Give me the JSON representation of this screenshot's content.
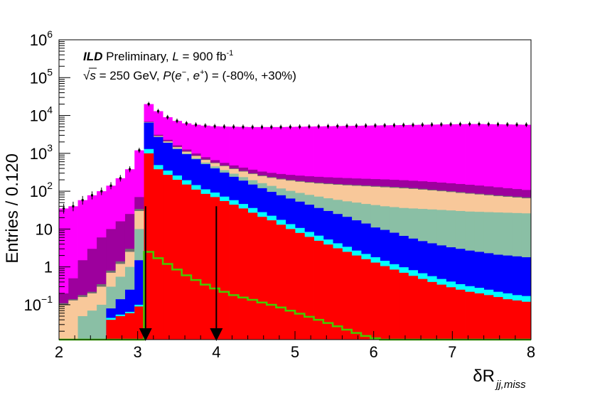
{
  "chart_data": {
    "type": "histogram",
    "ylabel": "Entries / 0.120",
    "xlabel": "δR",
    "xlabel_sub": "jj,miss",
    "xlim": [
      2,
      8
    ],
    "ylim": [
      0.012,
      1000000
    ],
    "y_scale": "log",
    "x_ticks": [
      "2",
      "3",
      "4",
      "5",
      "6",
      "7",
      "8"
    ],
    "y_ticks": [
      {
        "label": "10",
        "sup": "6",
        "value": 1000000
      },
      {
        "label": "10",
        "sup": "5",
        "value": 100000
      },
      {
        "label": "10",
        "sup": "4",
        "value": 10000
      },
      {
        "label": "10",
        "sup": "3",
        "value": 1000
      },
      {
        "label": "10",
        "sup": "2",
        "value": 100
      },
      {
        "label": "10",
        "sup": "",
        "value": 10
      },
      {
        "label": "1",
        "sup": "",
        "value": 1
      },
      {
        "label": "10",
        "sup": "−1",
        "value": 0.1
      }
    ],
    "annotation": {
      "ild": "ILD",
      "preliminary": " Preliminary, ",
      "lumi_symbol": "L",
      "lumi_value": " = 900 fb",
      "lumi_exp": "-1",
      "sqrt": "√",
      "s_symbol": "s",
      "energy": " = 250 GeV, ",
      "p_symbol": "P",
      "pol_open": "(",
      "e_minus": "e",
      "e_minus_sup": "−",
      "comma": ", ",
      "e_plus": "e",
      "e_plus_sup": "+",
      "pol_close": ") = (-80%, +30%)"
    },
    "bin_width": 0.12,
    "stack_colors": [
      "#ff0000",
      "#00ffff",
      "#0000ff",
      "#8abfa5",
      "#f8c89a",
      "#707070",
      "#9d009d",
      "#ff00ff"
    ],
    "stacks": [
      [
        0.012,
        0.012,
        0.012,
        0.012,
        0.012,
        0.04,
        0.05,
        0.06,
        0.09,
        1000,
        380,
        270,
        200,
        150,
        110,
        85,
        70,
        55,
        44,
        35,
        27,
        21,
        17,
        13,
        10,
        7.9,
        6.2,
        4.9,
        3.9,
        3.1,
        2.5,
        2.0,
        1.6,
        1.3,
        1.05,
        0.85,
        0.7,
        0.58,
        0.48,
        0.4,
        0.34,
        0.29,
        0.25,
        0.22,
        0.2,
        0.18,
        0.16,
        0.14,
        0.13,
        0.12
      ],
      [
        0.012,
        0.012,
        0.012,
        0.012,
        0.012,
        0.045,
        0.055,
        0.065,
        0.1,
        1300,
        490,
        350,
        260,
        195,
        145,
        112,
        92,
        72,
        58,
        46,
        36,
        28,
        22.5,
        17.5,
        13.5,
        10.7,
        8.4,
        6.7,
        5.3,
        4.2,
        3.4,
        2.7,
        2.2,
        1.8,
        1.45,
        1.18,
        0.98,
        0.82,
        0.68,
        0.57,
        0.48,
        0.41,
        0.35,
        0.31,
        0.28,
        0.25,
        0.22,
        0.2,
        0.18,
        0.17
      ],
      [
        0.012,
        0.012,
        0.012,
        0.012,
        0.012,
        0.08,
        0.14,
        0.25,
        1.5,
        6500,
        2700,
        1900,
        1300,
        950,
        700,
        520,
        400,
        310,
        240,
        190,
        150,
        120,
        96,
        78,
        64,
        53,
        44,
        36,
        30,
        25,
        21,
        17,
        14,
        11,
        9.5,
        8,
        6.6,
        5.6,
        4.8,
        4.2,
        3.7,
        3.3,
        3.0,
        2.7,
        2.5,
        2.3,
        2.1,
        2.0,
        1.9,
        1.8
      ],
      [
        0.012,
        0.012,
        0.05,
        0.07,
        0.1,
        0.3,
        0.55,
        1.0,
        10,
        6550,
        2750,
        1950,
        1350,
        1000,
        750,
        570,
        450,
        360,
        290,
        235,
        195,
        163,
        138,
        118,
        102,
        90,
        80,
        72,
        65,
        59,
        54,
        50,
        46,
        43,
        40,
        38,
        36,
        35,
        34,
        33,
        32,
        31,
        30,
        29,
        28.5,
        28,
        27.5,
        27,
        26.5,
        26
      ],
      [
        0.1,
        0.13,
        0.16,
        0.2,
        0.3,
        0.7,
        1.2,
        2.5,
        30,
        6650,
        2850,
        2060,
        1450,
        1100,
        850,
        670,
        550,
        460,
        385,
        330,
        285,
        250,
        225,
        205,
        190,
        178,
        168,
        160,
        154,
        148,
        143,
        139,
        135,
        131,
        127,
        123,
        119,
        115,
        110,
        105,
        100,
        95,
        90,
        86,
        82,
        78,
        74,
        71,
        68,
        65
      ],
      [
        0.11,
        0.14,
        0.18,
        0.22,
        0.35,
        0.8,
        1.4,
        3.0,
        34,
        6700,
        2900,
        2100,
        1480,
        1130,
        875,
        690,
        570,
        478,
        400,
        345,
        298,
        262,
        236,
        215,
        199,
        186,
        176,
        168,
        161,
        155,
        150,
        146,
        142,
        138,
        134,
        130,
        126,
        121,
        116,
        110,
        105,
        100,
        95,
        90,
        86,
        82,
        78,
        75,
        72,
        69
      ],
      [
        0.2,
        0.5,
        1.5,
        3.0,
        6.0,
        10,
        16,
        25,
        70,
        6900,
        3100,
        2280,
        1630,
        1260,
        990,
        790,
        660,
        560,
        480,
        420,
        370,
        330,
        305,
        285,
        270,
        258,
        248,
        240,
        233,
        227,
        222,
        217,
        213,
        209,
        205,
        200,
        195,
        189,
        183,
        176,
        169,
        162,
        155,
        148,
        141,
        134,
        127,
        120,
        114,
        108
      ],
      [
        35,
        40,
        58,
        78,
        100,
        140,
        220,
        380,
        1200,
        20000,
        13000,
        9000,
        7200,
        6200,
        5700,
        5400,
        5200,
        5100,
        5050,
        5000,
        4950,
        4950,
        4950,
        4950,
        5000,
        5050,
        5100,
        5150,
        5200,
        5250,
        5300,
        5350,
        5400,
        5450,
        5500,
        5550,
        5600,
        5650,
        5700,
        5750,
        5800,
        5850,
        5900,
        5950,
        5950,
        5900,
        5850,
        5800,
        5750,
        5700
      ]
    ],
    "data_points": [
      35,
      40,
      58,
      78,
      100,
      140,
      220,
      380,
      1200,
      20000,
      13000,
      9000,
      7200,
      6200,
      5700,
      5400,
      5200,
      5100,
      5050,
      5000,
      4950,
      4950,
      4950,
      4950,
      5000,
      5050,
      5100,
      5150,
      5200,
      5250,
      5300,
      5350,
      5400,
      5450,
      5500,
      5550,
      5600,
      5650,
      5700,
      5750,
      5800,
      5850,
      5900,
      5950,
      5950,
      5900,
      5850,
      5800,
      5750,
      5700
    ],
    "signal_color": "#44cc00",
    "signal": [
      0.012,
      0.012,
      0.012,
      0.012,
      0.012,
      0.012,
      0.012,
      0.012,
      0.012,
      2.5,
      1.7,
      1.2,
      0.85,
      0.6,
      0.45,
      0.34,
      0.27,
      0.22,
      0.18,
      0.155,
      0.135,
      0.115,
      0.1,
      0.085,
      0.07,
      0.058,
      0.048,
      0.04,
      0.033,
      0.027,
      0.022,
      0.018,
      0.015,
      0.013,
      0.012,
      0.012,
      0.012,
      0.012,
      0.012,
      0.012,
      0.012,
      0.012,
      0.012,
      0.012,
      0.012,
      0.012,
      0.012,
      0.012,
      0.012,
      0.012
    ],
    "cut_arrows": [
      3.1,
      4.0
    ],
    "arrow_top_value": 40
  }
}
